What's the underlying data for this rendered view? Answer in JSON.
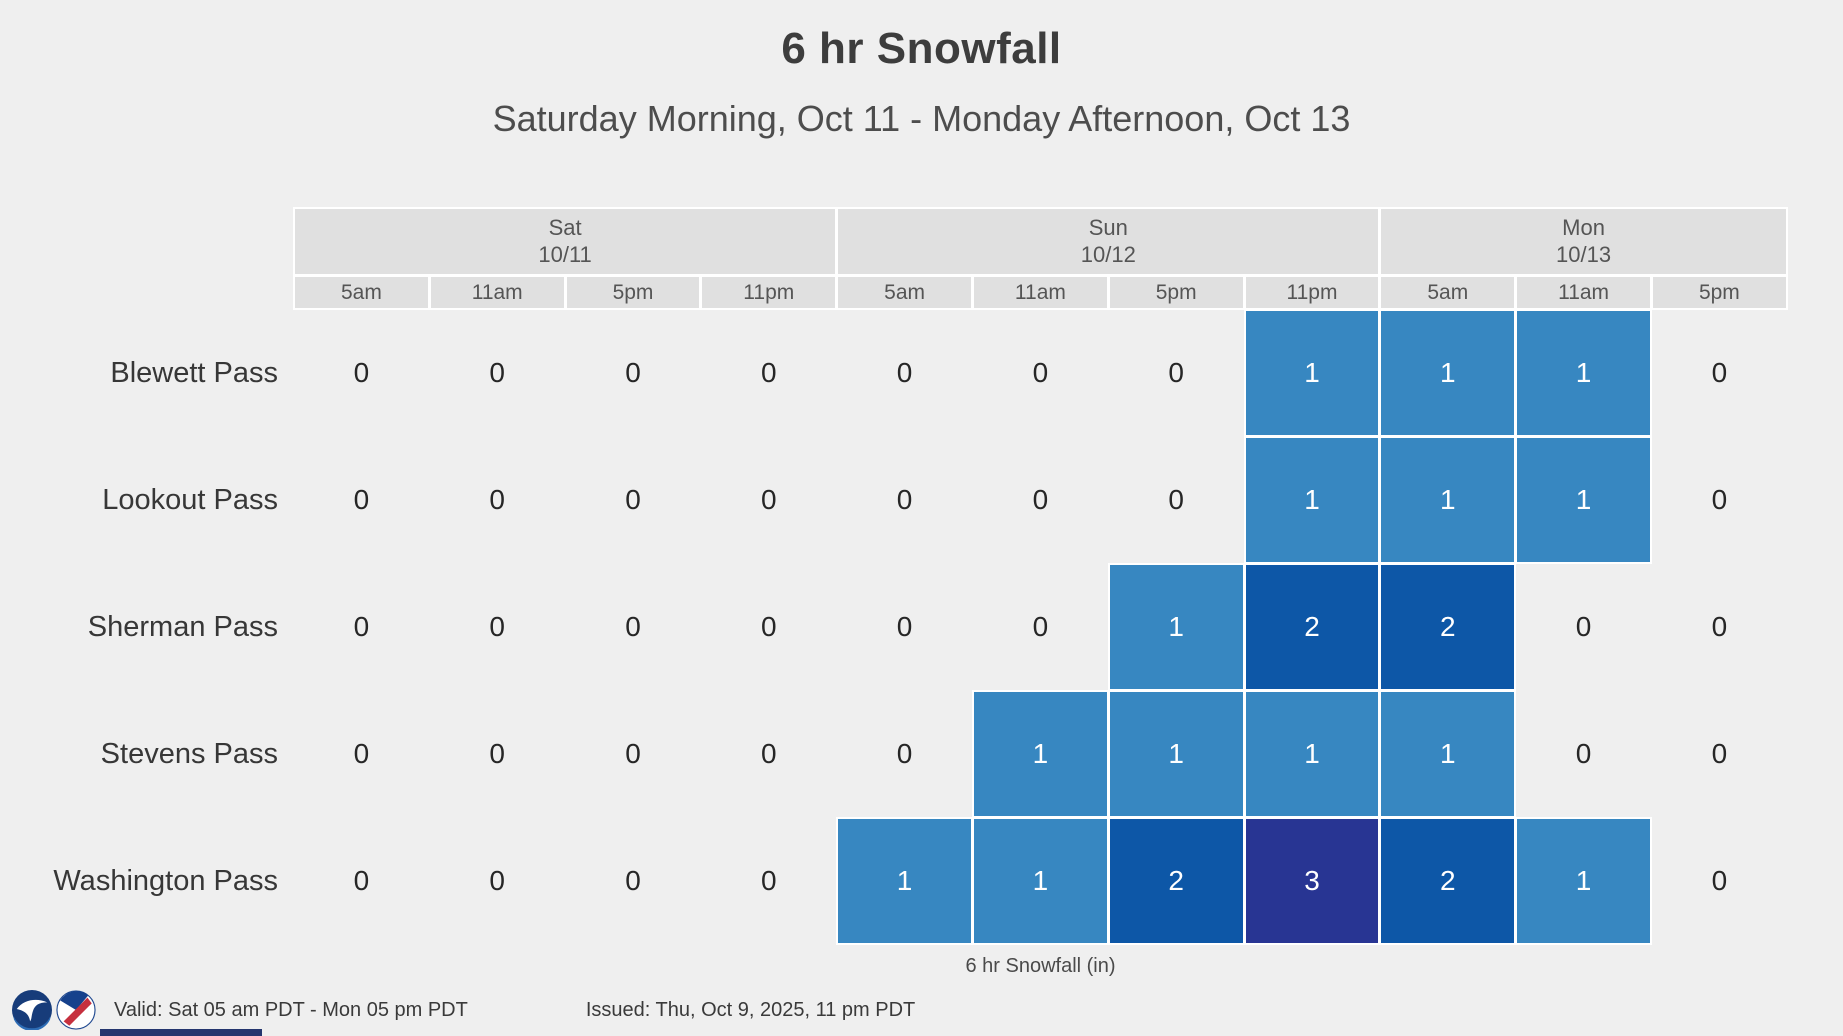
{
  "title": "6 hr Snowfall",
  "subtitle": "Saturday Morning, Oct 11 - Monday Afternoon, Oct 13",
  "chart_data": {
    "type": "heatmap",
    "title": "6 hr Snowfall",
    "subtitle": "Saturday Morning, Oct 11 - Monday Afternoon, Oct 13",
    "caption": "6 hr Snowfall (in)",
    "units": "inches",
    "day_groups": [
      {
        "label": "Sat",
        "date": "10/11",
        "span": 4
      },
      {
        "label": "Sun",
        "date": "10/12",
        "span": 4
      },
      {
        "label": "Mon",
        "date": "10/13",
        "span": 3
      }
    ],
    "time_labels": [
      "5am",
      "11am",
      "5pm",
      "11pm",
      "5am",
      "11am",
      "5pm",
      "11pm",
      "5am",
      "11am",
      "5pm"
    ],
    "rows": [
      {
        "label": "Blewett Pass",
        "values": [
          0,
          0,
          0,
          0,
          0,
          0,
          0,
          1,
          1,
          1,
          0
        ]
      },
      {
        "label": "Lookout Pass",
        "values": [
          0,
          0,
          0,
          0,
          0,
          0,
          0,
          1,
          1,
          1,
          0
        ]
      },
      {
        "label": "Sherman Pass",
        "values": [
          0,
          0,
          0,
          0,
          0,
          0,
          1,
          2,
          2,
          0,
          0
        ]
      },
      {
        "label": "Stevens Pass",
        "values": [
          0,
          0,
          0,
          0,
          0,
          1,
          1,
          1,
          1,
          0,
          0
        ]
      },
      {
        "label": "Washington Pass",
        "values": [
          0,
          0,
          0,
          0,
          1,
          1,
          2,
          3,
          2,
          1,
          0
        ]
      }
    ],
    "color_scale": {
      "0": "transparent",
      "1": "#3787c1",
      "2": "#0d57a7",
      "3": "#283593"
    },
    "legend_position": "none",
    "grid": false
  },
  "footer": {
    "valid": "Valid: Sat 05 am PDT - Mon 05 pm PDT",
    "issued": "Issued: Thu, Oct 9, 2025, 11 pm PDT"
  },
  "icons": {
    "left": "noaa-logo",
    "right": "nws-logo"
  }
}
